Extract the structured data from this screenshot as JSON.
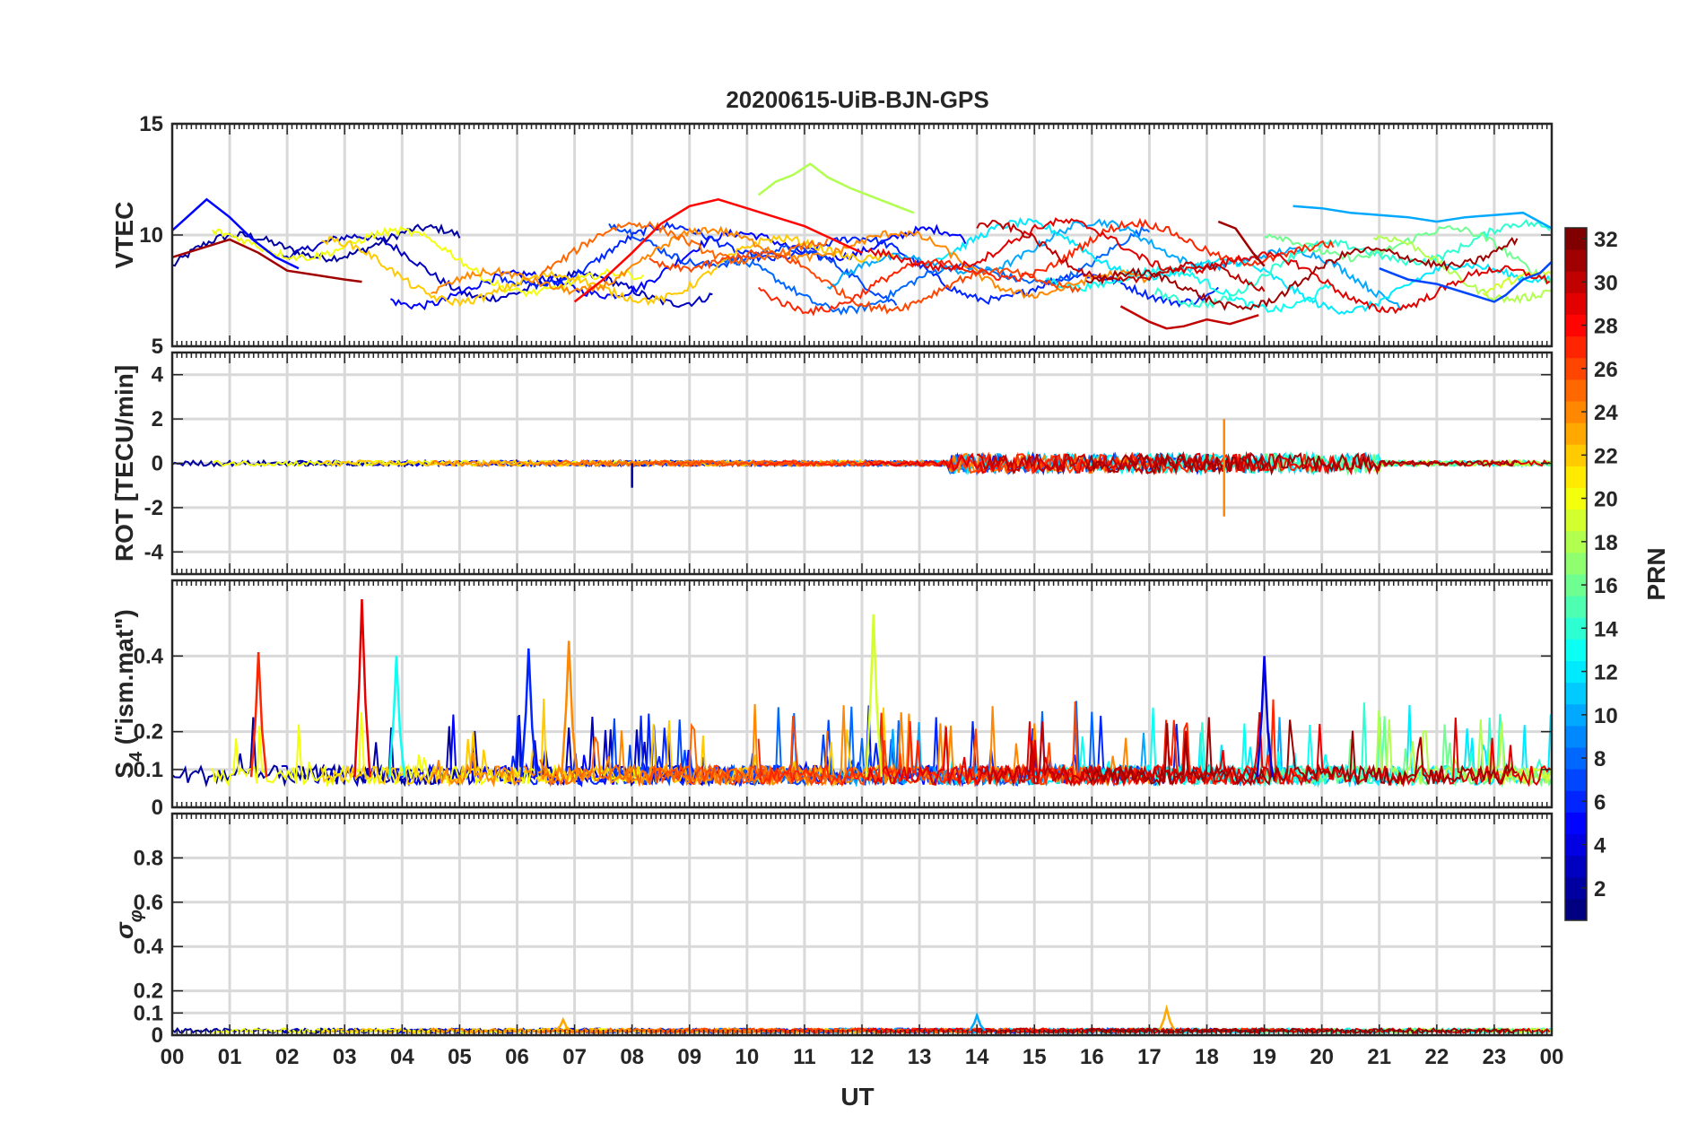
{
  "chart_data": {
    "type": "line",
    "title": "20200615-UiB-BJN-GPS",
    "xlabel": "UT",
    "x_ticks": [
      "00",
      "01",
      "02",
      "03",
      "04",
      "05",
      "06",
      "07",
      "08",
      "09",
      "10",
      "11",
      "12",
      "13",
      "14",
      "15",
      "16",
      "17",
      "18",
      "19",
      "20",
      "21",
      "22",
      "23",
      "00"
    ],
    "x_range_hours": [
      0,
      24
    ],
    "panels": [
      {
        "id": "vtec",
        "ylabel": "VTEC",
        "ylim": [
          5,
          15
        ],
        "yticks": [
          5,
          10,
          15
        ],
        "grid": true,
        "series_description": "VTEC per satellite PRN, ranging ~6 to ~13 TECU",
        "samples": [
          {
            "prn": 31,
            "x": [
              0,
              0.5,
              1,
              1.5,
              2,
              2.5,
              3,
              3.3
            ],
            "y": [
              9.0,
              9.4,
              9.8,
              9.2,
              8.4,
              8.2,
              8.0,
              7.9
            ]
          },
          {
            "prn": 5,
            "x": [
              0,
              0.3,
              0.6,
              1.0,
              1.4,
              1.8,
              2.2
            ],
            "y": [
              10.2,
              10.9,
              11.6,
              10.8,
              9.8,
              9.0,
              8.5
            ]
          },
          {
            "prn": 18,
            "x": [
              10.2,
              10.5,
              10.8,
              11.1,
              11.4,
              11.8,
              12.2,
              12.6,
              12.9
            ],
            "y": [
              11.8,
              12.4,
              12.7,
              13.2,
              12.6,
              12.1,
              11.7,
              11.3,
              11.0
            ]
          },
          {
            "prn": 28,
            "x": [
              7.0,
              7.5,
              8.0,
              8.5,
              9.0,
              9.5,
              10.0,
              10.5,
              11.0,
              11.5,
              12.0
            ],
            "y": [
              7.0,
              8.0,
              9.2,
              10.5,
              11.3,
              11.6,
              11.2,
              10.8,
              10.4,
              9.8,
              9.2
            ]
          },
          {
            "prn": 30,
            "x": [
              16.5,
              17.0,
              17.3,
              17.6,
              18.0,
              18.4,
              18.9
            ],
            "y": [
              6.8,
              6.1,
              5.8,
              5.9,
              6.2,
              6.0,
              6.4
            ]
          },
          {
            "prn": 31,
            "x": [
              18.2,
              18.5,
              18.8,
              19.0
            ],
            "y": [
              10.6,
              10.3,
              9.2,
              8.6
            ]
          },
          {
            "prn": 10,
            "x": [
              19.5,
              20.0,
              20.5,
              21.0,
              21.5,
              22.0,
              22.5,
              23.0,
              23.5,
              24.0
            ],
            "y": [
              11.3,
              11.2,
              11.0,
              10.9,
              10.8,
              10.6,
              10.8,
              10.9,
              11.0,
              10.3
            ]
          },
          {
            "prn": 7,
            "x": [
              21.0,
              21.5,
              22.0,
              22.5,
              23.0,
              23.2,
              23.5,
              23.8,
              24.0
            ],
            "y": [
              8.5,
              8.0,
              7.8,
              7.4,
              7.0,
              7.3,
              8.0,
              8.3,
              8.8
            ]
          }
        ]
      },
      {
        "id": "rot",
        "ylabel": "ROT [TECU/min]",
        "ylim": [
          -5,
          5
        ],
        "yticks": [
          -4,
          -2,
          0,
          2,
          4
        ],
        "grid": true,
        "series_description": "ROT fluctuating around 0, larger spikes 14-21 UT (max ~2, min ~-2.4 near 18.3 UT)",
        "extremes": [
          {
            "prn": 24,
            "x": 18.3,
            "y": -2.4
          },
          {
            "prn": 24,
            "x": 18.3,
            "y": 2.0
          },
          {
            "prn": 2,
            "x": 8.0,
            "y": -1.1
          }
        ]
      },
      {
        "id": "s4",
        "ylabel": "S4 (\"ism.mat\")",
        "ylabel_main": "S",
        "ylabel_sub": "4",
        "ylabel_rest": " (\"ism.mat\")",
        "ylim": [
          0,
          0.6
        ],
        "yticks": [
          0,
          0.1,
          0.2,
          0.4
        ],
        "ytick_labels": [
          "0",
          "0.1",
          "0.2",
          "0.4"
        ],
        "grid": true,
        "series_description": "S4 index per PRN, baseline ~0.05-0.1 with spikes",
        "peaks": [
          {
            "prn": 29,
            "x": 3.3,
            "y": 0.55
          },
          {
            "prn": 19,
            "x": 12.2,
            "y": 0.51
          },
          {
            "prn": 24,
            "x": 6.9,
            "y": 0.44
          },
          {
            "prn": 6,
            "x": 6.2,
            "y": 0.42
          },
          {
            "prn": 27,
            "x": 1.5,
            "y": 0.41
          },
          {
            "prn": 4,
            "x": 19.0,
            "y": 0.4
          },
          {
            "prn": 13,
            "x": 3.9,
            "y": 0.4
          }
        ]
      },
      {
        "id": "sigphi",
        "ylabel": "σ φ",
        "ylabel_main": "σ",
        "ylabel_sub": "φ",
        "ylim": [
          0,
          1
        ],
        "yticks": [
          0,
          0.1,
          0.2,
          0.4,
          0.6,
          0.8
        ],
        "ytick_labels": [
          "0",
          "0.1",
          "0.2",
          "0.4",
          "0.6",
          "0.8"
        ],
        "grid": true,
        "series_description": "sigma-phi near zero (<0.05) with small spikes ~0.1 at 17.3 UT",
        "peaks": [
          {
            "prn": 23,
            "x": 17.3,
            "y": 0.12
          },
          {
            "prn": 10,
            "x": 14.0,
            "y": 0.09
          },
          {
            "prn": 23,
            "x": 6.8,
            "y": 0.07
          }
        ]
      }
    ],
    "colorbar": {
      "label": "PRN",
      "colormap": "jet",
      "range": [
        1,
        32
      ],
      "ticks": [
        2,
        4,
        6,
        8,
        10,
        12,
        14,
        16,
        18,
        20,
        22,
        24,
        26,
        28,
        30,
        32
      ]
    }
  }
}
